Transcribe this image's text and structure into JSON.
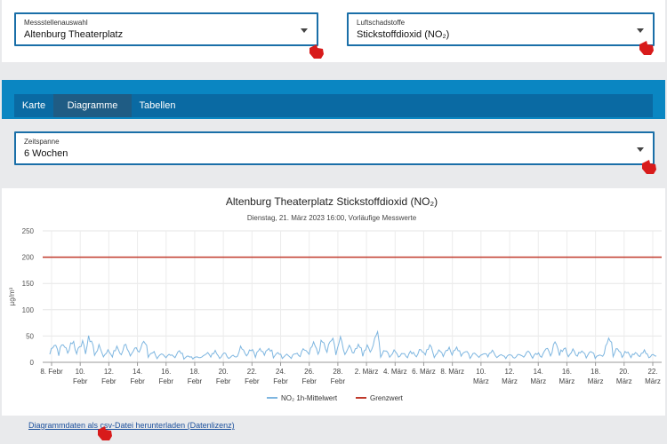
{
  "station_select": {
    "label": "Messstellenauswahl",
    "value": "Altenburg Theaterplatz",
    "icon": "chevron-down-icon"
  },
  "pollutant_select": {
    "label": "Luftschadstoffe",
    "value": "Stickstoffdioxid (NO₂)",
    "icon": "chevron-down-icon"
  },
  "tabs": [
    {
      "label": "Karte",
      "active": false
    },
    {
      "label": "Diagramme",
      "active": true
    },
    {
      "label": "Tabellen",
      "active": false
    }
  ],
  "period_select": {
    "label": "Zeitspanne",
    "value": "6 Wochen",
    "icon": "chevron-down-icon"
  },
  "chart": {
    "title": "Altenburg Theaterplatz Stickstoffdioxid (NO₂)",
    "subtitle": "Dienstag, 21. März 2023 16:00, Vorläufige Messwerte"
  },
  "chart_data": {
    "type": "line",
    "title": "Altenburg Theaterplatz Stickstoffdioxid (NO₂)",
    "ylabel": "µg/m³",
    "ylim": [
      0,
      250
    ],
    "yticks": [
      "0",
      "50",
      "100",
      "150",
      "200",
      "250"
    ],
    "xticks": [
      [
        "8. Febr",
        ""
      ],
      [
        "10.",
        "Febr"
      ],
      [
        "12.",
        "Febr"
      ],
      [
        "14.",
        "Febr"
      ],
      [
        "16.",
        "Febr"
      ],
      [
        "18.",
        "Febr"
      ],
      [
        "20.",
        "Febr"
      ],
      [
        "22.",
        "Febr"
      ],
      [
        "24.",
        "Febr"
      ],
      [
        "26.",
        "Febr"
      ],
      [
        "28.",
        "Febr"
      ],
      [
        "2. März",
        ""
      ],
      [
        "4. März",
        ""
      ],
      [
        "6. März",
        ""
      ],
      [
        "8. März",
        ""
      ],
      [
        "10.",
        "März"
      ],
      [
        "12.",
        "März"
      ],
      [
        "14.",
        "März"
      ],
      [
        "16.",
        "März"
      ],
      [
        "18.",
        "März"
      ],
      [
        "20.",
        "März"
      ],
      [
        "22.",
        "März"
      ]
    ],
    "grid": true,
    "series": [
      {
        "name": "NO₂ 1h-Mittelwert",
        "color": "#7eb6e0",
        "values_daily_max_approx": [
          40,
          38,
          45,
          42,
          52,
          30,
          22,
          28,
          35,
          30,
          45,
          20,
          12,
          15,
          20,
          10,
          8,
          18,
          20,
          15,
          12,
          32,
          28,
          25,
          30,
          20,
          12,
          15,
          25,
          35,
          42,
          48,
          45,
          35,
          40,
          30,
          62,
          25,
          22,
          18,
          20,
          25,
          30,
          22,
          28,
          30,
          22,
          15,
          18,
          20,
          15,
          12,
          15,
          20,
          18,
          25,
          35,
          30,
          22,
          25,
          20,
          15,
          55,
          25,
          20,
          18,
          22,
          15
        ]
      },
      {
        "name": "Grenzwert",
        "color": "#c0392b",
        "values": [
          200
        ]
      }
    ],
    "legend_position": "bottom-center"
  },
  "footer": {
    "link_text": "Diagrammdaten als csv-Datei herunterladen (Datenlizenz)"
  }
}
